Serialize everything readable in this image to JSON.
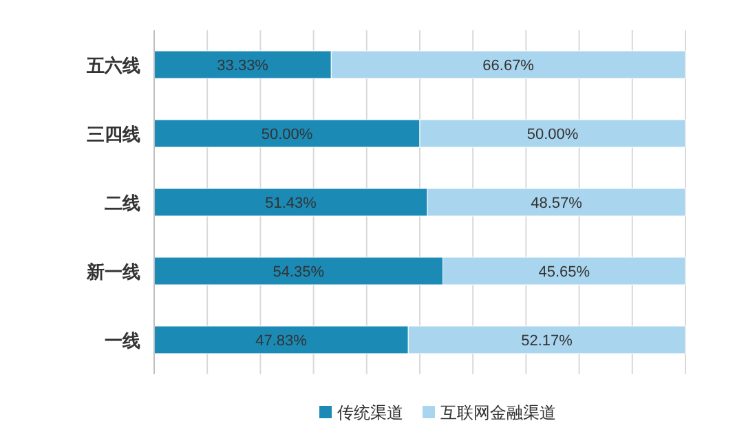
{
  "chart_data": {
    "type": "bar",
    "orientation": "horizontal",
    "stacked": true,
    "categories": [
      "五六线",
      "三四线",
      "二线",
      "新一线",
      "一线"
    ],
    "series": [
      {
        "name": "传统渠道",
        "color": "#1b8ab5",
        "values": [
          33.33,
          50.0,
          51.43,
          54.35,
          47.83
        ],
        "value_labels": [
          "33.33%",
          "50.00%",
          "51.43%",
          "54.35%",
          "47.83%"
        ]
      },
      {
        "name": "互联网金融渠道",
        "color": "#a9d5ee",
        "values": [
          66.67,
          50.0,
          48.57,
          45.65,
          52.17
        ],
        "value_labels": [
          "66.67%",
          "50.00%",
          "48.57%",
          "45.65%",
          "52.17%"
        ]
      }
    ],
    "xlim": [
      0,
      100
    ],
    "xticks": [
      {
        "value": 0,
        "label": null
      },
      {
        "value": 10,
        "label": null
      },
      {
        "value": 20,
        "label": null
      },
      {
        "value": 30,
        "label": null
      },
      {
        "value": 40,
        "label": null
      },
      {
        "value": 50,
        "label": null
      },
      {
        "value": 60,
        "label": null
      },
      {
        "value": 70,
        "label": null
      },
      {
        "value": 80,
        "label": null
      },
      {
        "value": 90,
        "label": null
      },
      {
        "value": 100,
        "label": null
      }
    ],
    "tick_labels": "y",
    "grid": "x",
    "legend": "bottom"
  }
}
